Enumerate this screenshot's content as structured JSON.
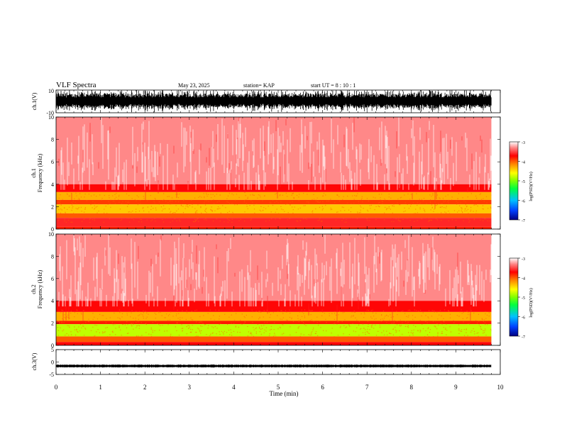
{
  "header": {
    "title": "VLF Spectra",
    "date": "May 23, 2025",
    "station": "station= KAP",
    "start": "start  UT  =   8  : 10 : 1"
  },
  "axes": {
    "ch1_wave_ylabel": "ch.1(V)",
    "ch1_wave_ticks": [
      "10",
      "-10"
    ],
    "ch1_spec_ylabel_top": "ch.1",
    "ch1_spec_ylabel": "Frequency  (kHz)",
    "ch2_spec_ylabel_top": "ch.2",
    "ch2_spec_ylabel": "Frequency  (kHz)",
    "freq_ticks": [
      "0",
      "2",
      "4",
      "6",
      "8",
      "10"
    ],
    "ch3_wave_ylabel": "ch.3(V)",
    "ch3_wave_ticks": [
      "5",
      "0",
      "-5"
    ],
    "x_ticks": [
      "0",
      "1",
      "2",
      "3",
      "4",
      "5",
      "6",
      "7",
      "8",
      "9",
      "10"
    ],
    "xlabel": "Time  (min)"
  },
  "colorbar": {
    "ticks": [
      "-3",
      "-4",
      "-5",
      "-6",
      "-7"
    ],
    "label": "log(PSD)(V²/Hz)",
    "colors": [
      "#000080",
      "#0040ff",
      "#00c0ff",
      "#00ff40",
      "#80ff00",
      "#ffff00",
      "#ff8000",
      "#ff0000",
      "#ff8080",
      "#ffffff"
    ]
  },
  "chart_data": [
    {
      "type": "line",
      "name_label": "ch.1(V)",
      "x_range": [
        0,
        10
      ],
      "ylim": [
        -10,
        10
      ],
      "x_end": 9.8,
      "description_shape": "dense broadband noise reaching near full scale",
      "amplitude_typical": 7,
      "amplitude_peak": 10
    },
    {
      "type": "heatmap",
      "x_range": [
        0,
        10
      ],
      "x_end": 9.8,
      "ylim": [
        0,
        10
      ],
      "zlim": [
        -7,
        -3
      ],
      "bands": [
        {
          "from": 4,
          "to": 10,
          "level": -3.3
        },
        {
          "from": 3.3,
          "to": 4,
          "level": -3.7
        },
        {
          "from": 2.6,
          "to": 3.3,
          "level": -4.3
        },
        {
          "from": 2.2,
          "to": 2.6,
          "level": -3.9
        },
        {
          "from": 1.4,
          "to": 2.2,
          "level": -4.4
        },
        {
          "from": 1.0,
          "to": 1.4,
          "level": -4.0
        },
        {
          "from": 0.2,
          "to": 1.0,
          "level": -3.6
        },
        {
          "from": 0,
          "to": 0.2,
          "level": -3.8
        }
      ]
    },
    {
      "type": "heatmap",
      "x_range": [
        0,
        10
      ],
      "x_end": 9.8,
      "ylim": [
        0,
        10
      ],
      "zlim": [
        -7,
        -3
      ],
      "bands": [
        {
          "from": 4,
          "to": 10,
          "level": -3.3
        },
        {
          "from": 3.0,
          "to": 4,
          "level": -3.7
        },
        {
          "from": 2.2,
          "to": 3.0,
          "level": -4.3
        },
        {
          "from": 1.9,
          "to": 2.2,
          "level": -3.8
        },
        {
          "from": 0.8,
          "to": 1.9,
          "level": -4.8
        },
        {
          "from": 0.3,
          "to": 0.8,
          "level": -4.0
        },
        {
          "from": 0,
          "to": 0.3,
          "level": -3.7
        }
      ]
    },
    {
      "type": "line",
      "name_label": "ch.3(V)",
      "x_range": [
        0,
        10
      ],
      "x_end": 9.8,
      "ylim": [
        -5,
        5
      ],
      "offset": -1.6,
      "amplitude_typical": 0.6
    }
  ]
}
